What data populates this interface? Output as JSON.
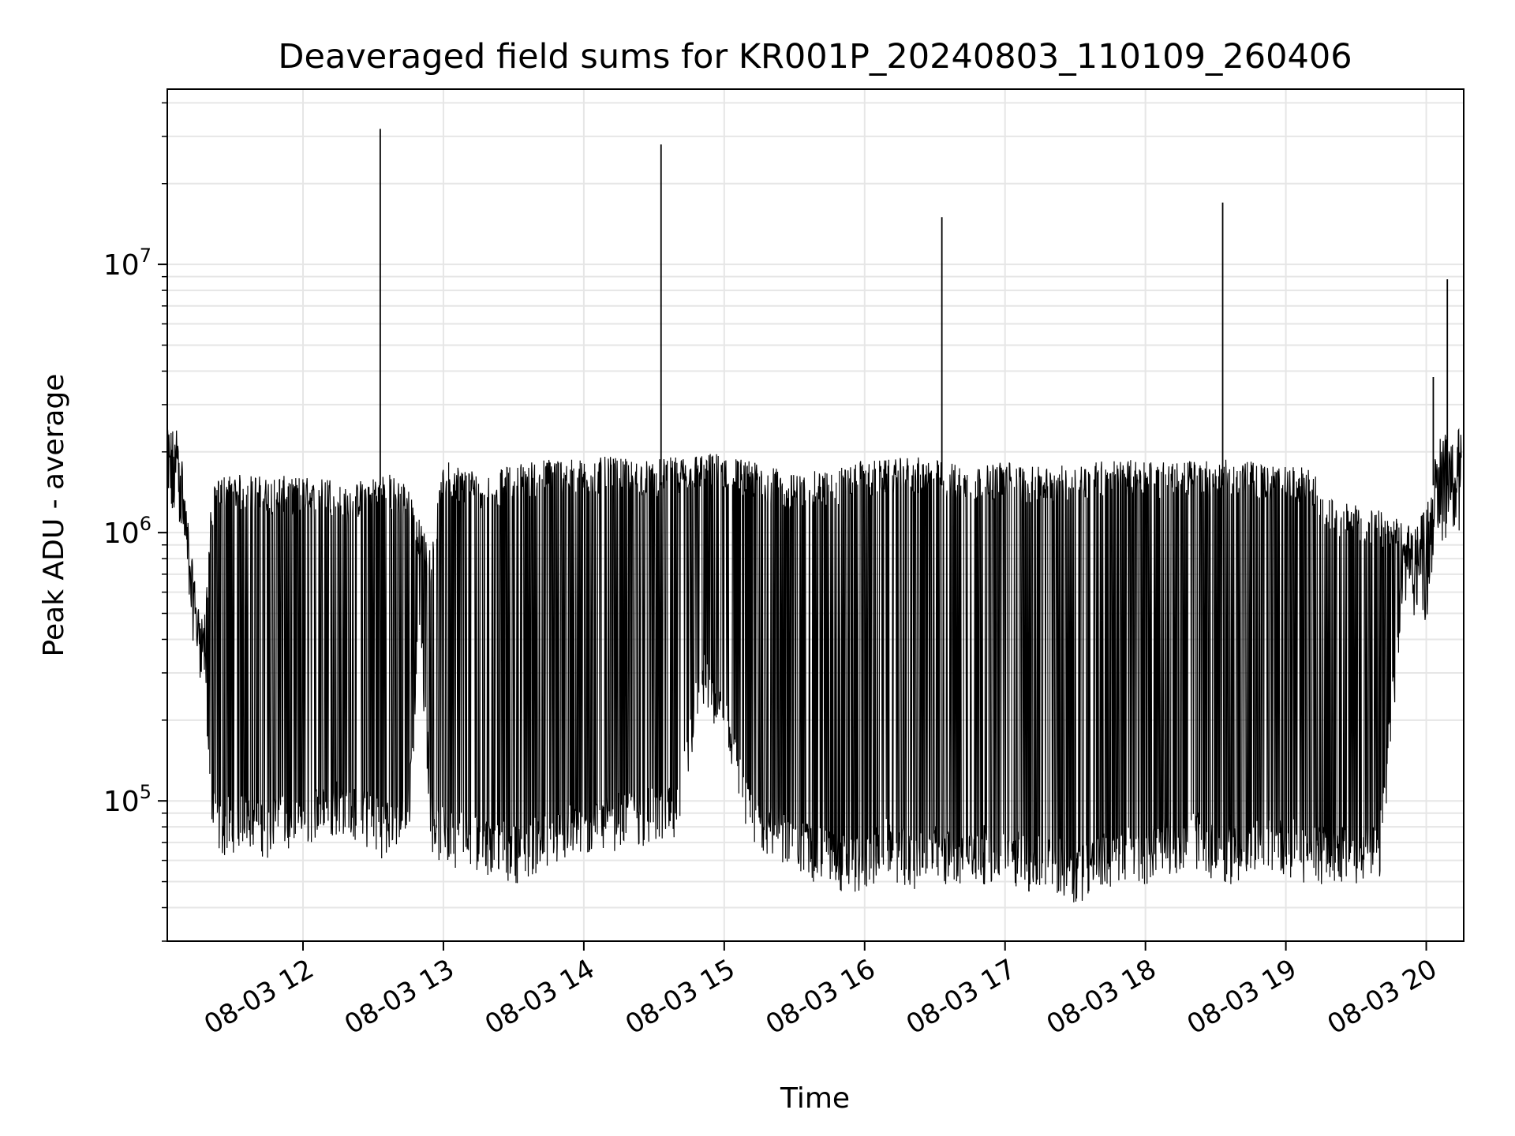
{
  "chart_data": {
    "type": "line",
    "title": "Deaveraged field sums for KR001P_20240803_110109_260406",
    "xlabel": "Time",
    "ylabel": "Peak ADU - average",
    "yscale": "log",
    "ylim": [
      30000,
      45000000
    ],
    "xlim": [
      "08-03 11:02",
      "08-03 20:16"
    ],
    "grid": true,
    "line_color": "#000000",
    "grid_color": "#e6e6e6",
    "x_ticks": [
      {
        "label": "08-03 12",
        "time": "08-03 12:00"
      },
      {
        "label": "08-03 13",
        "time": "08-03 13:00"
      },
      {
        "label": "08-03 14",
        "time": "08-03 14:00"
      },
      {
        "label": "08-03 15",
        "time": "08-03 15:00"
      },
      {
        "label": "08-03 16",
        "time": "08-03 16:00"
      },
      {
        "label": "08-03 17",
        "time": "08-03 17:00"
      },
      {
        "label": "08-03 18",
        "time": "08-03 18:00"
      },
      {
        "label": "08-03 19",
        "time": "08-03 19:00"
      },
      {
        "label": "08-03 20",
        "time": "08-03 20:00"
      }
    ],
    "y_ticks": [
      {
        "base": "10",
        "exp": "5",
        "value": 100000
      },
      {
        "base": "10",
        "exp": "6",
        "value": 1000000
      },
      {
        "base": "10",
        "exp": "7",
        "value": 10000000
      }
    ],
    "series": [
      {
        "x": [
          "08-03 11:02",
          "08-03 11:07",
          "08-03 11:12",
          "08-03 11:15",
          "08-03 11:18",
          "08-03 11:21",
          "08-03 11:25",
          "08-03 11:30",
          "08-03 11:35",
          "08-03 11:40",
          "08-03 11:45",
          "08-03 11:50",
          "08-03 11:55",
          "08-03 12:00",
          "08-03 12:05",
          "08-03 12:10",
          "08-03 12:15",
          "08-03 12:20",
          "08-03 12:25",
          "08-03 12:30",
          "08-03 12:35",
          "08-03 12:40",
          "08-03 12:45",
          "08-03 12:50",
          "08-03 12:55",
          "08-03 13:00",
          "08-03 13:10",
          "08-03 13:20",
          "08-03 13:30",
          "08-03 13:40",
          "08-03 13:50",
          "08-03 14:00",
          "08-03 14:10",
          "08-03 14:20",
          "08-03 14:30",
          "08-03 14:40",
          "08-03 14:50",
          "08-03 15:00",
          "08-03 15:10",
          "08-03 15:20",
          "08-03 15:30",
          "08-03 15:40",
          "08-03 15:50",
          "08-03 16:00",
          "08-03 16:10",
          "08-03 16:20",
          "08-03 16:30",
          "08-03 16:40",
          "08-03 16:50",
          "08-03 17:00",
          "08-03 17:10",
          "08-03 17:20",
          "08-03 17:30",
          "08-03 17:40",
          "08-03 17:50",
          "08-03 18:00",
          "08-03 18:10",
          "08-03 18:20",
          "08-03 18:30",
          "08-03 18:40",
          "08-03 18:50",
          "08-03 19:00",
          "08-03 19:10",
          "08-03 19:20",
          "08-03 19:30",
          "08-03 19:40",
          "08-03 19:50",
          "08-03 20:00",
          "08-03 20:05",
          "08-03 20:10",
          "08-03 20:15"
        ],
        "lower": [
          1200000,
          1500000,
          600000,
          400000,
          350000,
          90000,
          80000,
          85000,
          90000,
          85000,
          80000,
          90000,
          80000,
          85000,
          95000,
          90000,
          100000,
          95000,
          90000,
          85000,
          80000,
          85000,
          90000,
          500000,
          85000,
          75000,
          75000,
          70000,
          65000,
          70000,
          75000,
          80000,
          85000,
          90000,
          90000,
          90000,
          300000,
          200000,
          90000,
          80000,
          70000,
          65000,
          60000,
          60000,
          70000,
          60000,
          65000,
          60000,
          65000,
          65000,
          60000,
          60000,
          55000,
          60000,
          65000,
          65000,
          70000,
          75000,
          65000,
          65000,
          70000,
          70000,
          65000,
          65000,
          65000,
          65000,
          700000,
          600000,
          1200000,
          1300000,
          1300000
        ],
        "upper": [
          2200000,
          2300000,
          800000,
          500000,
          450000,
          1300000,
          1500000,
          1500000,
          1500000,
          1500000,
          1450000,
          1500000,
          1450000,
          1500000,
          1400000,
          1500000,
          1400000,
          1300000,
          1450000,
          1500000,
          1550000,
          1450000,
          1400000,
          1000000,
          800000,
          1700000,
          1600000,
          1500000,
          1650000,
          1700000,
          1750000,
          1700000,
          1750000,
          1700000,
          1700000,
          1750000,
          1800000,
          1800000,
          1700000,
          1600000,
          1500000,
          1550000,
          1600000,
          1700000,
          1700000,
          1750000,
          1700000,
          1650000,
          1600000,
          1700000,
          1600000,
          1600000,
          1650000,
          1700000,
          1700000,
          1700000,
          1650000,
          1700000,
          1700000,
          1700000,
          1650000,
          1600000,
          1600000,
          1200000,
          1150000,
          1100000,
          1000000,
          1100000,
          2000000,
          2300000,
          2200000
        ],
        "spikes": [
          {
            "x": "08-03 12:33",
            "y": 32000000
          },
          {
            "x": "08-03 14:33",
            "y": 28000000
          },
          {
            "x": "08-03 16:33",
            "y": 15000000
          },
          {
            "x": "08-03 18:33",
            "y": 17000000
          },
          {
            "x": "08-03 20:03",
            "y": 3800000
          },
          {
            "x": "08-03 20:09",
            "y": 8800000
          }
        ]
      }
    ]
  }
}
